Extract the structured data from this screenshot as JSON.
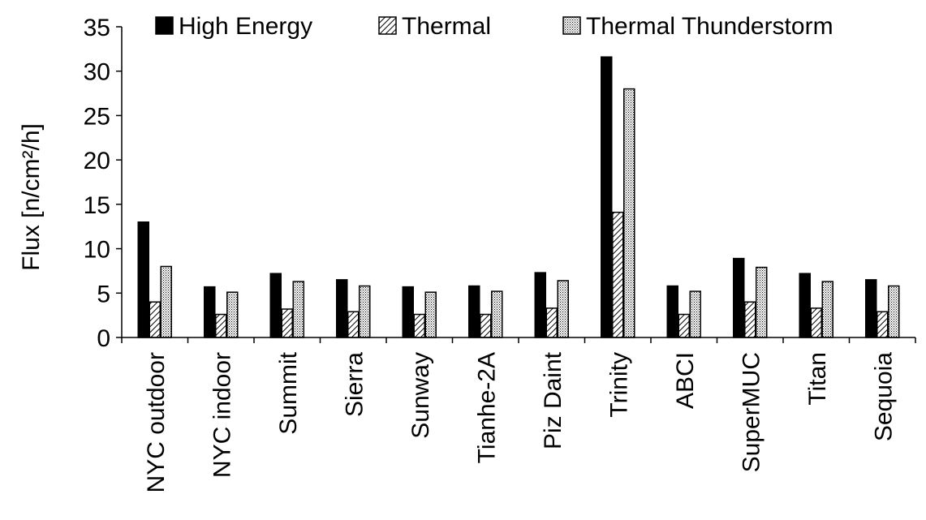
{
  "chart_data": {
    "type": "bar",
    "ylabel": "Flux [n/cm²/h]",
    "ylim": [
      0,
      35
    ],
    "yticks": [
      0,
      5,
      10,
      15,
      20,
      25,
      30,
      35
    ],
    "grid": false,
    "legend_position": "top",
    "categories": [
      "NYC outdoor",
      "NYC indoor",
      "Summit",
      "Sierra",
      "Sunway",
      "Tianhe-2A",
      "Piz Daint",
      "Trinity",
      "ABCI",
      "SuperMUC",
      "Titan",
      "Sequoia"
    ],
    "series": [
      {
        "name": "High Energy",
        "pattern": "solid",
        "color": "#000000",
        "values": [
          13.0,
          5.7,
          7.2,
          6.5,
          5.7,
          5.8,
          7.3,
          31.6,
          5.8,
          8.9,
          7.2,
          6.5
        ]
      },
      {
        "name": "Thermal",
        "pattern": "diagonal-hatch",
        "color": "#000000",
        "values": [
          4.0,
          2.6,
          3.2,
          2.9,
          2.6,
          2.6,
          3.3,
          14.1,
          2.6,
          4.0,
          3.3,
          2.9
        ]
      },
      {
        "name": "Thermal Thunderstorm",
        "pattern": "dots",
        "color": "#000000",
        "values": [
          8.0,
          5.1,
          6.3,
          5.8,
          5.1,
          5.2,
          6.4,
          28.0,
          5.2,
          7.9,
          6.3,
          5.8
        ]
      }
    ]
  }
}
